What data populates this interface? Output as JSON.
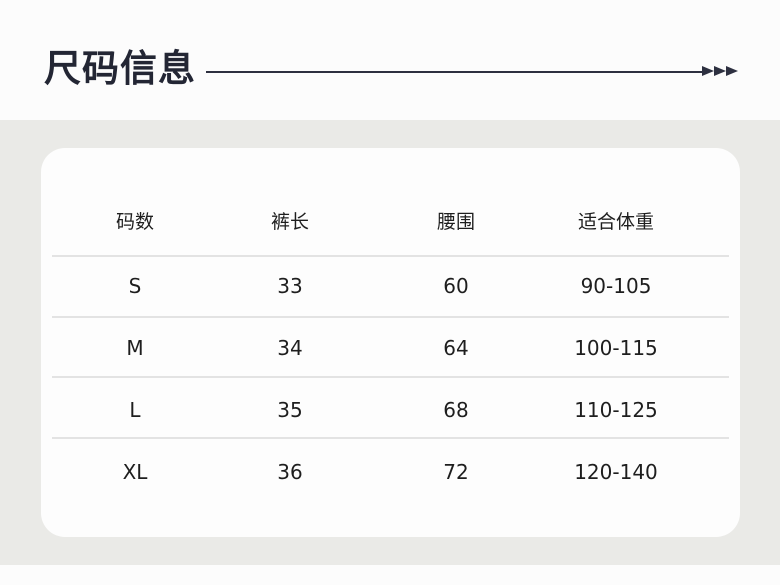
{
  "title": "尺码信息",
  "table": {
    "headers": [
      "码数",
      "裤长",
      "腰围",
      "适合体重"
    ],
    "rows": [
      [
        "S",
        "33",
        "60",
        "90-105"
      ],
      [
        "M",
        "34",
        "64",
        "100-115"
      ],
      [
        "L",
        "35",
        "68",
        "110-125"
      ],
      [
        "XL",
        "36",
        "72",
        "120-140"
      ]
    ]
  }
}
